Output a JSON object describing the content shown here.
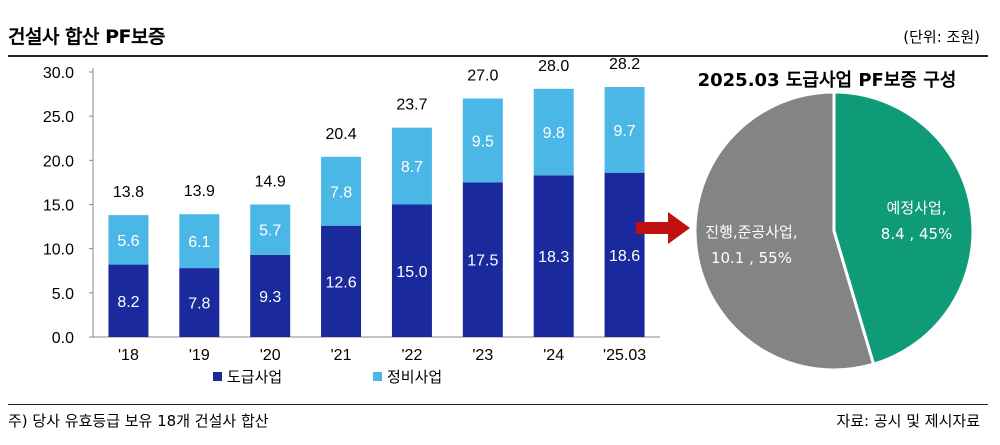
{
  "header": {
    "title": "건설사 합산 PF보증",
    "unit": "(단위: 조원)"
  },
  "footer": {
    "note": "주) 당사 유효등급 보유 18개 건설사 합산",
    "source": "자료: 공시 및 제시자료"
  },
  "colors": {
    "contract": "#1a2a9c",
    "maintenance": "#4ab7e6",
    "pie_gray": "#848484",
    "pie_green": "#0f9a78",
    "arrow": "#c01010"
  },
  "chart_data": [
    {
      "type": "bar",
      "stacked": true,
      "categories": [
        "'18",
        "'19",
        "'20",
        "'21",
        "'22",
        "'23",
        "'24",
        "'25.03"
      ],
      "series": [
        {
          "name": "도급사업",
          "values": [
            8.2,
            7.8,
            9.3,
            12.6,
            15.0,
            17.5,
            18.3,
            18.6
          ]
        },
        {
          "name": "정비사업",
          "values": [
            5.6,
            6.1,
            5.7,
            7.8,
            8.7,
            9.5,
            9.8,
            9.7
          ]
        }
      ],
      "totals": [
        13.8,
        13.9,
        14.9,
        20.4,
        23.7,
        27.0,
        28.0,
        28.2
      ],
      "value_labels": {
        "bottom": [
          "8.2",
          "7.8",
          "9.3",
          "12.6",
          "15.0",
          "17.5",
          "18.3",
          "18.6"
        ],
        "top": [
          "5.6",
          "6.1",
          "5.7",
          "7.8",
          "8.7",
          "9.5",
          "9.8",
          "9.7"
        ],
        "totals": [
          "13.8",
          "13.9",
          "14.9",
          "20.4",
          "23.7",
          "27.0",
          "28.0",
          "28.2"
        ]
      },
      "ylim": [
        0,
        30
      ],
      "yticks": [
        "0.0",
        "5.0",
        "10.0",
        "15.0",
        "20.0",
        "25.0",
        "30.0"
      ],
      "legend": [
        "도급사업",
        "정비사업"
      ],
      "legend_position": "bottom",
      "grid": false
    },
    {
      "type": "pie",
      "title": "2025.03 도급사업 PF보증 구성",
      "slices": [
        {
          "name": "예정사업",
          "value": 8.4,
          "percent": 45,
          "label_lines": [
            "예정사업,",
            "8.4 , 45%"
          ]
        },
        {
          "name": "진행,준공사업",
          "value": 10.1,
          "percent": 55,
          "label_lines": [
            "진행,준공사업,",
            "10.1 , 55%"
          ]
        }
      ]
    }
  ]
}
